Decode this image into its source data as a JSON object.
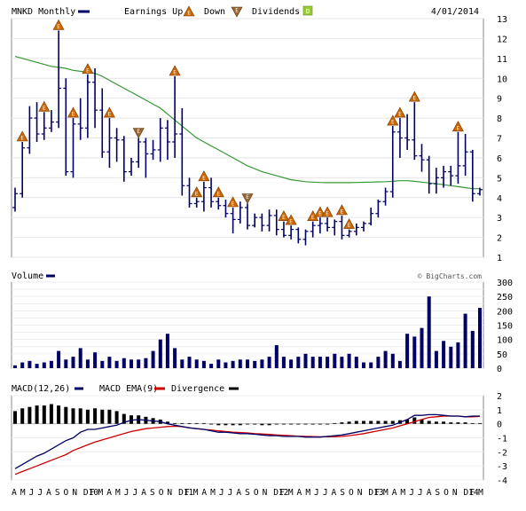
{
  "header": {
    "symbol_label": "MNKD Monthly",
    "earnings_label": "Earnings Up",
    "down_label": "Down",
    "dividends_label": "Dividends",
    "date": "4/01/2014",
    "earnings_glyph": "E",
    "dividend_glyph": "D"
  },
  "volume_panel": {
    "label": "Volume",
    "watermark": "© BigCharts.com"
  },
  "macd_panel": {
    "label": "MACD(12,26)",
    "ema_label": "MACD EMA(9)",
    "divergence_label": "Divergence"
  },
  "colors": {
    "price_bar": "#000066",
    "moving_average": "#339933",
    "volume_bar": "#000066",
    "macd_line": "#000066",
    "ema_line": "#cc0000",
    "divergence_bar": "#000000",
    "earnings_up": "#cc6600",
    "earnings_down": "#996633",
    "dividend": "#99cc33"
  },
  "chart_data": [
    {
      "type": "ohlc",
      "name": "price",
      "ylim": [
        1,
        13
      ],
      "yticks": [
        1,
        2,
        3,
        4,
        5,
        6,
        7,
        8,
        9,
        10,
        11,
        12,
        13
      ],
      "x_labels": [
        "A",
        "M",
        "J",
        "J",
        "A",
        "S",
        "O",
        "N",
        "D10",
        "F",
        "M",
        "A",
        "M",
        "J",
        "J",
        "A",
        "S",
        "O",
        "N",
        "D11",
        "F",
        "M",
        "A",
        "M",
        "J",
        "J",
        "A",
        "S",
        "O",
        "N",
        "D12",
        "F",
        "M",
        "A",
        "M",
        "J",
        "J",
        "A",
        "S",
        "O",
        "N",
        "D13",
        "F",
        "M",
        "A",
        "M",
        "J",
        "J",
        "A",
        "S",
        "O",
        "N",
        "D14",
        "F",
        "M"
      ],
      "ohlc": [
        [
          3.5,
          4.5,
          3.3,
          4.2
        ],
        [
          4.2,
          6.8,
          4.0,
          6.5
        ],
        [
          6.5,
          8.6,
          6.2,
          8.0
        ],
        [
          8.0,
          8.8,
          6.8,
          7.2
        ],
        [
          7.2,
          8.3,
          6.9,
          7.5
        ],
        [
          7.5,
          8.4,
          7.3,
          7.8
        ],
        [
          7.8,
          12.4,
          7.5,
          9.5
        ],
        [
          9.5,
          10.0,
          5.1,
          5.3
        ],
        [
          5.3,
          8.0,
          5.0,
          7.7
        ],
        [
          7.7,
          9.0,
          6.9,
          7.5
        ],
        [
          7.5,
          10.2,
          7.0,
          9.8
        ],
        [
          9.8,
          10.5,
          7.5,
          8.4
        ],
        [
          8.4,
          9.5,
          6.0,
          6.3
        ],
        [
          6.3,
          8.0,
          5.5,
          7.0
        ],
        [
          7.0,
          7.5,
          5.8,
          6.9
        ],
        [
          6.9,
          7.1,
          4.8,
          5.3
        ],
        [
          5.3,
          6.0,
          5.1,
          5.8
        ],
        [
          5.8,
          7.0,
          5.5,
          6.8
        ],
        [
          6.8,
          7.0,
          5.0,
          6.2
        ],
        [
          6.2,
          6.9,
          5.9,
          6.4
        ],
        [
          6.4,
          8.0,
          5.8,
          7.5
        ],
        [
          7.5,
          7.9,
          5.9,
          6.8
        ],
        [
          6.8,
          10.1,
          6.0,
          7.2
        ],
        [
          7.2,
          8.5,
          4.1,
          4.6
        ],
        [
          4.6,
          5.0,
          3.5,
          3.7
        ],
        [
          3.7,
          4.0,
          3.5,
          3.8
        ],
        [
          3.8,
          4.8,
          3.3,
          4.5
        ],
        [
          4.5,
          5.0,
          3.5,
          3.8
        ],
        [
          3.8,
          4.0,
          3.4,
          3.6
        ],
        [
          3.6,
          3.9,
          3.0,
          3.2
        ],
        [
          3.2,
          3.5,
          2.2,
          2.9
        ],
        [
          2.9,
          3.8,
          2.7,
          3.5
        ],
        [
          3.5,
          3.7,
          2.4,
          2.6
        ],
        [
          2.6,
          3.2,
          2.5,
          3.0
        ],
        [
          3.0,
          3.2,
          2.3,
          2.6
        ],
        [
          2.6,
          3.4,
          2.3,
          3.1
        ],
        [
          3.1,
          3.4,
          2.1,
          2.4
        ],
        [
          2.4,
          2.8,
          2.0,
          2.1
        ],
        [
          2.1,
          2.6,
          1.9,
          2.4
        ],
        [
          2.4,
          2.5,
          1.7,
          1.9
        ],
        [
          1.9,
          2.4,
          1.6,
          2.3
        ],
        [
          2.3,
          2.8,
          2.0,
          2.6
        ],
        [
          2.6,
          3.0,
          2.2,
          2.7
        ],
        [
          2.7,
          3.0,
          2.3,
          2.5
        ],
        [
          2.5,
          2.9,
          2.1,
          2.8
        ],
        [
          2.8,
          3.1,
          1.9,
          2.1
        ],
        [
          2.1,
          2.4,
          2.0,
          2.3
        ],
        [
          2.3,
          2.7,
          2.1,
          2.5
        ],
        [
          2.5,
          2.8,
          2.3,
          2.7
        ],
        [
          2.7,
          3.5,
          2.6,
          3.2
        ],
        [
          3.2,
          3.9,
          3.0,
          3.8
        ],
        [
          3.8,
          4.5,
          3.6,
          4.3
        ],
        [
          4.3,
          7.6,
          4.0,
          7.3
        ],
        [
          7.3,
          8.0,
          6.0,
          7.0
        ],
        [
          7.0,
          8.2,
          6.4,
          6.9
        ],
        [
          6.9,
          8.8,
          5.9,
          6.1
        ],
        [
          6.1,
          6.7,
          5.3,
          5.9
        ],
        [
          5.9,
          6.1,
          4.2,
          4.7
        ],
        [
          4.7,
          5.5,
          4.2,
          5.0
        ],
        [
          5.0,
          5.6,
          4.5,
          5.3
        ],
        [
          5.3,
          5.6,
          4.6,
          5.1
        ],
        [
          5.1,
          7.3,
          4.7,
          5.6
        ],
        [
          5.6,
          7.2,
          5.1,
          6.3
        ],
        [
          6.3,
          6.4,
          3.8,
          4.2
        ],
        [
          4.2,
          4.5,
          4.1,
          4.4
        ]
      ],
      "moving_average": [
        11.1,
        11.0,
        10.9,
        10.8,
        10.7,
        10.6,
        10.55,
        10.5,
        10.4,
        10.35,
        10.3,
        10.25,
        10.1,
        9.9,
        9.7,
        9.5,
        9.3,
        9.1,
        8.9,
        8.7,
        8.5,
        8.2,
        7.9,
        7.6,
        7.3,
        7.0,
        6.8,
        6.6,
        6.4,
        6.2,
        6.0,
        5.8,
        5.6,
        5.45,
        5.3,
        5.2,
        5.1,
        5.0,
        4.9,
        4.85,
        4.8,
        4.78,
        4.76,
        4.75,
        4.75,
        4.75,
        4.75,
        4.76,
        4.77,
        4.78,
        4.79,
        4.8,
        4.82,
        4.85,
        4.85,
        4.82,
        4.78,
        4.74,
        4.7,
        4.65,
        4.6,
        4.55,
        4.5,
        4.45,
        4.45
      ],
      "earnings_up_idx": [
        1,
        4,
        6,
        8,
        10,
        13,
        17,
        22,
        25,
        26,
        28,
        30,
        32,
        37,
        38,
        41,
        42,
        43,
        45,
        46,
        52,
        53,
        55,
        61
      ],
      "earnings_down_idx": [
        17,
        21,
        24,
        32,
        34,
        36,
        48
      ]
    },
    {
      "type": "bar",
      "name": "volume",
      "ylim": [
        0,
        300
      ],
      "yticks": [
        0,
        25,
        50,
        75,
        100,
        125,
        150,
        175,
        200,
        225,
        250,
        275,
        300
      ],
      "values": [
        10,
        20,
        25,
        15,
        20,
        25,
        60,
        30,
        40,
        70,
        30,
        55,
        25,
        40,
        25,
        35,
        30,
        30,
        35,
        60,
        100,
        120,
        70,
        30,
        40,
        30,
        25,
        15,
        30,
        20,
        25,
        30,
        30,
        25,
        30,
        40,
        80,
        40,
        30,
        40,
        50,
        40,
        40,
        40,
        50,
        40,
        50,
        40,
        20,
        20,
        40,
        60,
        50,
        25,
        120,
        110,
        140,
        250,
        60,
        95,
        75,
        90,
        190,
        130,
        210
      ]
    },
    {
      "type": "line",
      "name": "macd",
      "ylim": [
        -4,
        2
      ],
      "yticks": [
        -4,
        -3,
        -2,
        -1,
        0,
        1,
        2
      ],
      "macd": [
        -3.2,
        -2.9,
        -2.6,
        -2.3,
        -2.1,
        -1.8,
        -1.5,
        -1.2,
        -1.0,
        -0.6,
        -0.4,
        -0.4,
        -0.3,
        -0.2,
        -0.1,
        0.1,
        0.25,
        0.3,
        0.25,
        0.2,
        0.15,
        0.0,
        -0.1,
        -0.2,
        -0.3,
        -0.35,
        -0.4,
        -0.5,
        -0.6,
        -0.6,
        -0.65,
        -0.7,
        -0.7,
        -0.75,
        -0.8,
        -0.85,
        -0.85,
        -0.9,
        -0.9,
        -0.9,
        -0.95,
        -0.95,
        -0.95,
        -0.9,
        -0.85,
        -0.8,
        -0.7,
        -0.6,
        -0.5,
        -0.4,
        -0.3,
        -0.2,
        -0.1,
        0.1,
        0.3,
        0.6,
        0.6,
        0.65,
        0.65,
        0.6,
        0.55,
        0.55,
        0.5,
        0.55,
        0.55
      ],
      "ema": [
        -3.6,
        -3.4,
        -3.2,
        -3.0,
        -2.8,
        -2.6,
        -2.4,
        -2.2,
        -1.9,
        -1.7,
        -1.5,
        -1.3,
        -1.15,
        -1.0,
        -0.85,
        -0.7,
        -0.55,
        -0.45,
        -0.35,
        -0.3,
        -0.25,
        -0.2,
        -0.18,
        -0.2,
        -0.28,
        -0.35,
        -0.4,
        -0.45,
        -0.5,
        -0.55,
        -0.6,
        -0.62,
        -0.65,
        -0.7,
        -0.72,
        -0.76,
        -0.8,
        -0.82,
        -0.85,
        -0.88,
        -0.9,
        -0.92,
        -0.93,
        -0.93,
        -0.92,
        -0.9,
        -0.85,
        -0.78,
        -0.7,
        -0.6,
        -0.5,
        -0.4,
        -0.3,
        -0.15,
        0.0,
        0.15,
        0.3,
        0.45,
        0.5,
        0.55,
        0.55,
        0.55,
        0.5,
        0.5,
        0.52
      ],
      "divergence": [
        0.9,
        1.1,
        1.2,
        1.3,
        1.3,
        1.4,
        1.3,
        1.2,
        1.1,
        1.1,
        1.0,
        1.1,
        1.0,
        1.0,
        0.9,
        0.7,
        0.6,
        0.6,
        0.5,
        0.4,
        0.3,
        0.15,
        0.05,
        0.05,
        0.05,
        0.05,
        0.05,
        -0.05,
        -0.1,
        -0.1,
        -0.1,
        -0.1,
        -0.05,
        -0.05,
        -0.1,
        -0.1,
        -0.05,
        -0.05,
        -0.05,
        -0.05,
        -0.05,
        -0.05,
        -0.05,
        0.0,
        0.05,
        0.1,
        0.15,
        0.2,
        0.2,
        0.2,
        0.2,
        0.2,
        0.2,
        0.25,
        0.3,
        0.45,
        0.3,
        0.2,
        0.15,
        0.15,
        0.1,
        0.1,
        0.1,
        0.05,
        0.05
      ]
    }
  ]
}
